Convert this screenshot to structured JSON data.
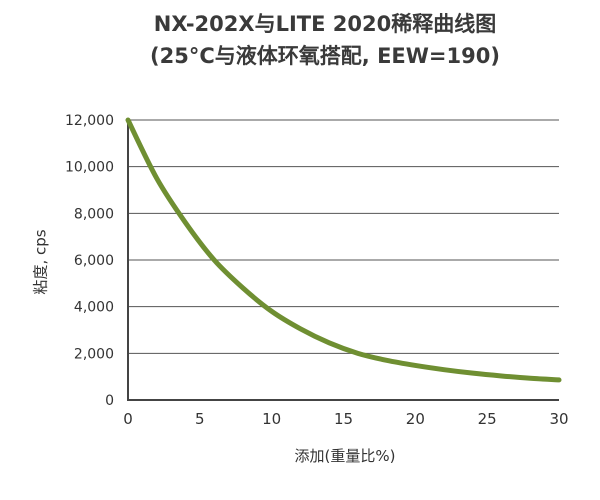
{
  "chart_data": {
    "type": "line",
    "title": "NX-202X与LITE 2020稀释曲线图",
    "subtitle": "(25°C与液体环氧搭配, EEW=190)",
    "xlabel": "添加(重量比%)",
    "ylabel": "粘度, cps",
    "xlim": [
      0,
      30
    ],
    "ylim": [
      0,
      12000
    ],
    "xticks": [
      "0",
      "5",
      "10",
      "15",
      "20",
      "25",
      "30"
    ],
    "yticks": [
      "0",
      "2,000",
      "4,000",
      "6,000",
      "8,000",
      "10,000",
      "12,000"
    ],
    "grid": "horizontal",
    "color": "#6f8f32",
    "series": [
      {
        "x": [
          0,
          2,
          4,
          6,
          8,
          10,
          12,
          14,
          16,
          18,
          20,
          22,
          24,
          26,
          28,
          30
        ],
        "y": [
          12000,
          9500,
          7600,
          6000,
          4800,
          3800,
          3050,
          2450,
          2000,
          1700,
          1480,
          1300,
          1150,
          1030,
          930,
          860
        ]
      }
    ]
  }
}
